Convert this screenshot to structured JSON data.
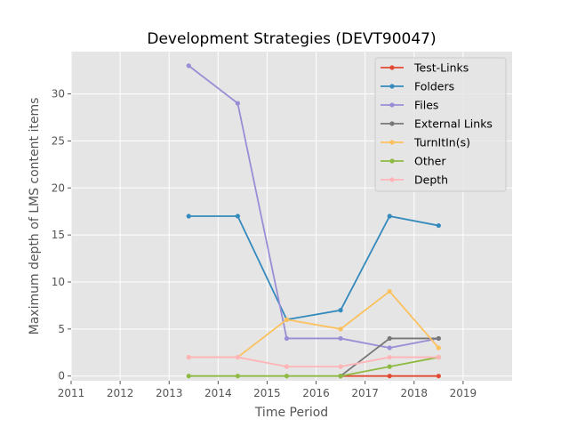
{
  "chart_data": {
    "type": "line",
    "title": "Development Strategies (DEVT90047)",
    "xlabel": "Time Period",
    "ylabel": "Maximum depth of LMS content items",
    "xlim": [
      2011,
      2020
    ],
    "ylim": [
      -0.5,
      34.5
    ],
    "xticks": [
      2011,
      2012,
      2013,
      2014,
      2015,
      2016,
      2017,
      2018,
      2019
    ],
    "yticks": [
      0,
      5,
      10,
      15,
      20,
      25,
      30
    ],
    "grid": true,
    "legend_position": "top-right",
    "series": [
      {
        "name": "Test-Links",
        "color": "#E24A33",
        "points": [
          [
            2016.5,
            0
          ],
          [
            2017.5,
            0
          ],
          [
            2018.5,
            0
          ]
        ]
      },
      {
        "name": "Folders",
        "color": "#348ABD",
        "points": [
          [
            2013.4,
            17
          ],
          [
            2014.4,
            17
          ],
          [
            2015.4,
            6
          ],
          [
            2016.5,
            7
          ],
          [
            2017.5,
            17
          ],
          [
            2018.5,
            16
          ]
        ]
      },
      {
        "name": "Files",
        "color": "#988ED5",
        "points": [
          [
            2013.4,
            33
          ],
          [
            2014.4,
            29
          ],
          [
            2015.4,
            4
          ],
          [
            2016.5,
            4
          ],
          [
            2017.5,
            3
          ],
          [
            2018.5,
            4
          ]
        ]
      },
      {
        "name": "External Links",
        "color": "#777777",
        "points": [
          [
            2016.5,
            0
          ],
          [
            2017.5,
            4
          ],
          [
            2018.5,
            4
          ]
        ]
      },
      {
        "name": "TurnItIn(s)",
        "color": "#FBC15E",
        "points": [
          [
            2013.4,
            2
          ],
          [
            2014.4,
            2
          ],
          [
            2015.4,
            6
          ],
          [
            2016.5,
            5
          ],
          [
            2017.5,
            9
          ],
          [
            2018.5,
            3
          ]
        ]
      },
      {
        "name": "Other",
        "color": "#8EBA42",
        "points": [
          [
            2013.4,
            0
          ],
          [
            2014.4,
            0
          ],
          [
            2015.4,
            0
          ],
          [
            2016.5,
            0
          ],
          [
            2017.5,
            1
          ],
          [
            2018.5,
            2
          ]
        ]
      },
      {
        "name": "Depth",
        "color": "#FFB5B8",
        "points": [
          [
            2013.4,
            2
          ],
          [
            2014.4,
            2
          ],
          [
            2015.4,
            1
          ],
          [
            2016.5,
            1
          ],
          [
            2017.5,
            2
          ],
          [
            2018.5,
            2
          ]
        ]
      }
    ]
  }
}
